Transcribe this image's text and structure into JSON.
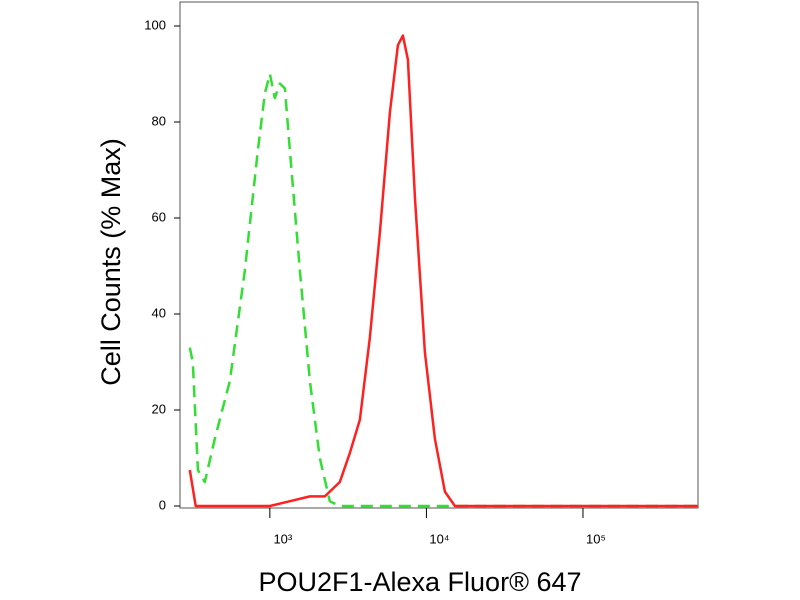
{
  "chart_data": {
    "type": "line",
    "x_label": "POU2F1-Alexa Fluor® 647",
    "y_label": "Cell Counts (% Max)",
    "xscale": "log",
    "xlim": [
      300,
      543000
    ],
    "ylim": [
      0,
      105
    ],
    "xticks": [
      {
        "value": 1000,
        "label": "10³"
      },
      {
        "value": 10000,
        "label": "10⁴"
      },
      {
        "value": 100000,
        "label": "10⁵"
      }
    ],
    "yticks": [
      0,
      20,
      40,
      60,
      80,
      100
    ],
    "series": [
      {
        "color": "#33dd33",
        "dashed": true,
        "x": [
          308,
          322,
          347,
          384,
          445,
          555,
          692,
          838,
          929,
          1000,
          1076,
          1159,
          1247,
          1343,
          1556,
          1802,
          2085,
          2415,
          2798,
          543000
        ],
        "values": [
          33,
          30,
          7.5,
          5,
          14,
          26,
          49,
          74,
          86,
          90,
          85,
          88,
          87,
          74,
          49,
          26,
          10,
          1,
          0,
          0
        ]
      },
      {
        "color": "#ff2020",
        "dashed": false,
        "x": [
          308,
          336,
          555,
          1000,
          1343,
          1802,
          2245,
          2415,
          2798,
          3242,
          3757,
          4352,
          5043,
          5843,
          6577,
          7080,
          7621,
          8450,
          9780,
          11330,
          13120,
          15200,
          61500,
          543000
        ],
        "values": [
          7.5,
          0,
          0,
          0,
          1,
          2,
          2,
          3,
          5,
          11,
          18,
          35,
          57,
          82,
          96,
          98,
          93,
          64,
          32,
          14,
          3,
          0,
          0,
          0
        ]
      }
    ]
  }
}
